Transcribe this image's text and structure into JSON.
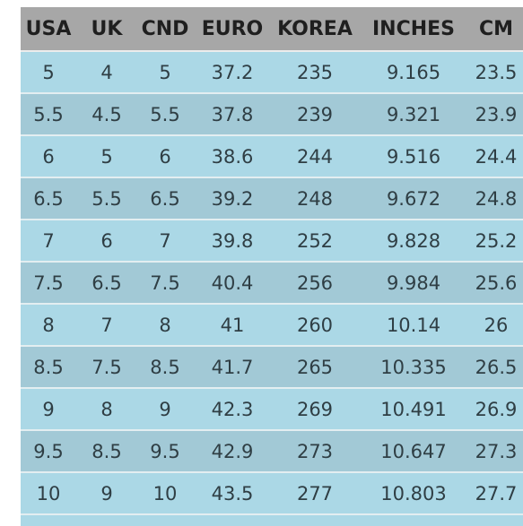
{
  "size_chart": {
    "headers": [
      "USA",
      "UK",
      "CND",
      "EURO",
      "KOREA",
      "INCHES",
      "CM"
    ],
    "rows": [
      [
        "5",
        "4",
        "5",
        "37.2",
        "235",
        "9.165",
        "23.5"
      ],
      [
        "5.5",
        "4.5",
        "5.5",
        "37.8",
        "239",
        "9.321",
        "23.9"
      ],
      [
        "6",
        "5",
        "6",
        "38.6",
        "244",
        "9.516",
        "24.4"
      ],
      [
        "6.5",
        "5.5",
        "6.5",
        "39.2",
        "248",
        "9.672",
        "24.8"
      ],
      [
        "7",
        "6",
        "7",
        "39.8",
        "252",
        "9.828",
        "25.2"
      ],
      [
        "7.5",
        "6.5",
        "7.5",
        "40.4",
        "256",
        "9.984",
        "25.6"
      ],
      [
        "8",
        "7",
        "8",
        "41",
        "260",
        "10.14",
        "26"
      ],
      [
        "8.5",
        "7.5",
        "8.5",
        "41.7",
        "265",
        "10.335",
        "26.5"
      ],
      [
        "9",
        "8",
        "9",
        "42.3",
        "269",
        "10.491",
        "26.9"
      ],
      [
        "9.5",
        "8.5",
        "9.5",
        "42.9",
        "273",
        "10.647",
        "27.3"
      ],
      [
        "10",
        "9",
        "10",
        "43.5",
        "277",
        "10.803",
        "27.7"
      ]
    ]
  },
  "colors": {
    "header_bg": "#a7a7a7",
    "row_light": "#abd8e6",
    "row_dark": "#a2c9d6",
    "cell_text": "#2f3e44"
  }
}
